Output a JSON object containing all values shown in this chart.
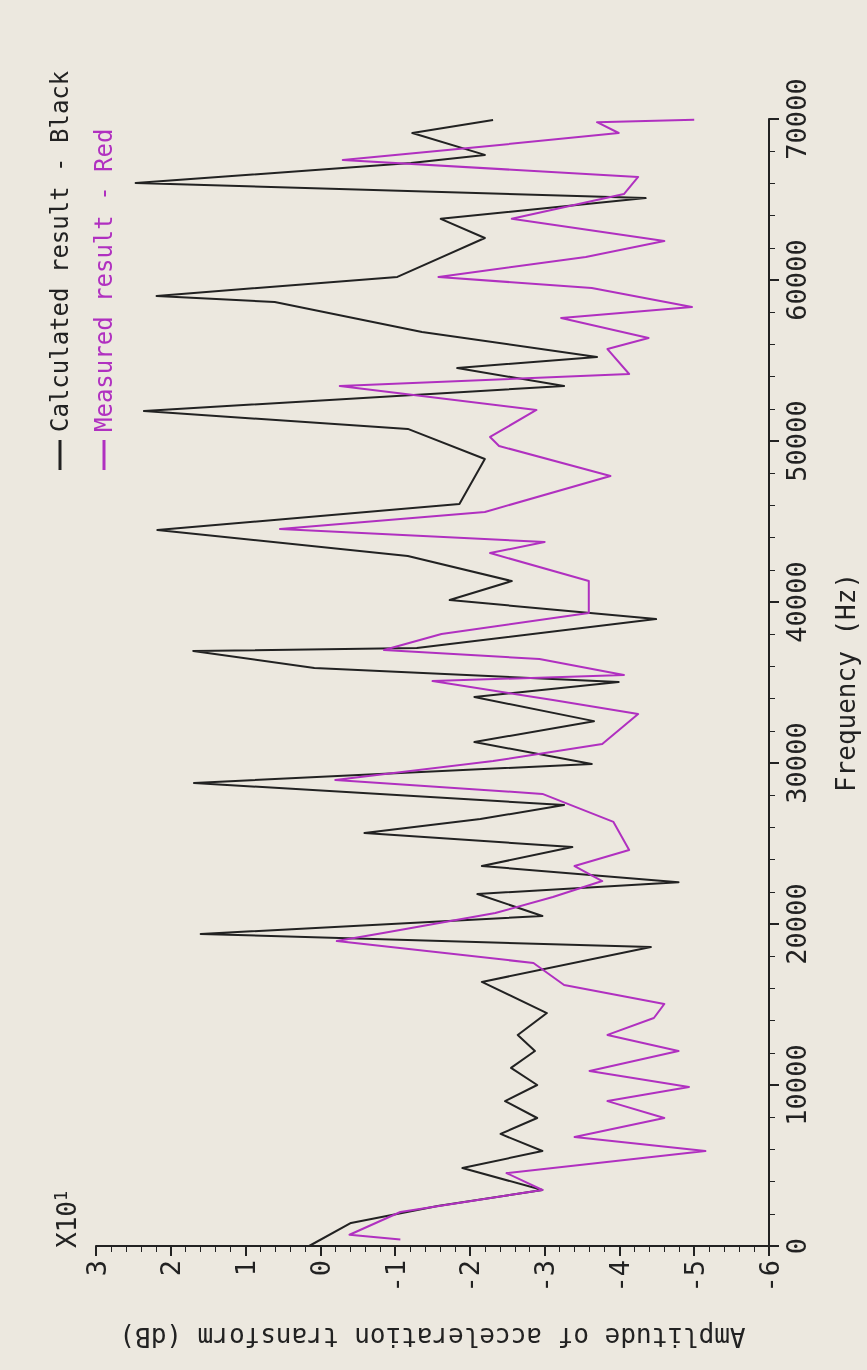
{
  "chart_data": {
    "type": "line",
    "xlabel": "Amplitude of acceleration transform (dB)",
    "ylabel": "Frequency (Hz)",
    "annotations": [
      "X10$^{1}$"
    ],
    "xlim": [
      3,
      -6
    ],
    "xticks": [
      3,
      2,
      1,
      0,
      -1,
      -2,
      -3,
      -4,
      -5,
      -6
    ],
    "ylim": [
      0,
      70000
    ],
    "yticks": [
      0,
      10000,
      20000,
      30000,
      40000,
      50000,
      60000,
      70000
    ],
    "grid": false,
    "legend": "top left",
    "series": [
      {
        "name": "Calculated result - Black",
        "color": "#222222",
        "values": [
          0,
          1430,
          2480,
          3480,
          4840,
          5900,
          6960,
          7950,
          9000,
          10000,
          11060,
          12110,
          13110,
          14470,
          16400,
          18570,
          19380,
          20500,
          21860,
          22600,
          23600,
          24780,
          25650,
          26520,
          27390,
          28760,
          29940,
          31300,
          32600,
          34100,
          35030,
          35900,
          36960,
          37140,
          38940,
          40120,
          41300,
          42860,
          44470,
          46090,
          48880,
          50750,
          51860,
          53420,
          54530,
          55220,
          56770,
          58630,
          59010,
          60190,
          62610,
          63800,
          65090,
          66020,
          67270,
          67770,
          69130,
          69940
        ],
        "x": [
          0.15,
          -0.41,
          -1.57,
          -2.97,
          -1.9,
          -2.97,
          -2.41,
          -2.9,
          -2.47,
          -2.9,
          -2.55,
          -2.87,
          -2.64,
          -3.03,
          -2.16,
          -4.42,
          1.6,
          -2.97,
          -2.1,
          -4.79,
          -2.16,
          -3.37,
          -0.59,
          -2.14,
          -3.26,
          1.69,
          -3.63,
          -2.06,
          -3.66,
          -2.06,
          -3.99,
          0.08,
          1.7,
          -1.29,
          -4.49,
          -1.73,
          -2.56,
          -1.17,
          2.18,
          -1.86,
          -2.2,
          -1.17,
          2.36,
          -3.26,
          -1.83,
          -3.7,
          -1.36,
          0.61,
          2.19,
          -1.03,
          -2.2,
          -1.61,
          -4.35,
          2.47,
          -1.21,
          -2.2,
          -1.23,
          -2.31
        ]
      },
      {
        "name": "Measured result - Red",
        "color": "#b030c0",
        "values": [
          400,
          700,
          2110,
          3480,
          4530,
          5900,
          6770,
          7950,
          9000,
          9880,
          10870,
          12110,
          13110,
          14160,
          15030,
          16210,
          17580,
          18940,
          19440,
          20680,
          21680,
          22670,
          23600,
          24600,
          26340,
          28080,
          28940,
          30120,
          31180,
          33040,
          33910,
          35090,
          35470,
          36460,
          37020,
          38010,
          39320,
          41300,
          43040,
          43730,
          44530,
          45590,
          47830,
          49690,
          50250,
          51930,
          53420,
          54160,
          55710,
          56400,
          57640,
          58320,
          59500,
          60190,
          61430,
          62420,
          63800,
          65340,
          66400,
          67450,
          68260,
          69130,
          69800,
          69950
        ],
        "x": [
          -1.07,
          -0.39,
          -1.07,
          -2.97,
          -2.49,
          -5.15,
          -3.4,
          -4.6,
          -3.84,
          -4.93,
          -3.6,
          -4.79,
          -3.84,
          -4.46,
          -4.6,
          -3.26,
          -2.85,
          -0.22,
          -0.84,
          -2.34,
          -3.11,
          -3.77,
          -3.4,
          -4.13,
          -3.92,
          -2.97,
          -0.2,
          -2.31,
          -3.77,
          -4.25,
          -3.11,
          -1.5,
          -4.06,
          -2.93,
          -0.85,
          -1.62,
          -3.59,
          -3.59,
          -2.27,
          -3.0,
          0.54,
          -2.2,
          -3.88,
          -2.39,
          -2.27,
          -2.89,
          -0.26,
          -4.13,
          -3.84,
          -4.39,
          -3.22,
          -4.97,
          -3.63,
          -1.58,
          -3.55,
          -4.6,
          -2.56,
          -4.06,
          -4.25,
          -0.3,
          -2.12,
          -3.99,
          -3.7,
          -5.0
        ]
      }
    ]
  }
}
